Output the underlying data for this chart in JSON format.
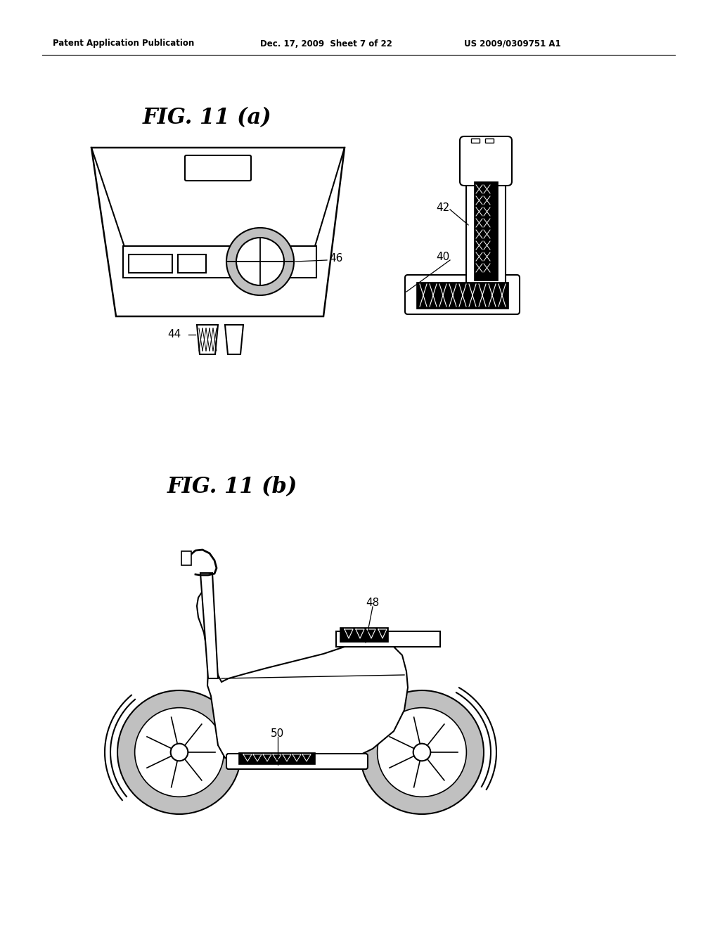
{
  "background_color": "#ffffff",
  "header_left": "Patent Application Publication",
  "header_mid": "Dec. 17, 2009  Sheet 7 of 22",
  "header_right": "US 2009/0309751 A1",
  "fig_title_a": "FIG. 11 (a)",
  "fig_title_b": "FIG. 11 (b)",
  "label_44": "44",
  "label_46": "46",
  "label_40": "40",
  "label_42": "42",
  "label_48": "48",
  "label_50": "50",
  "line_color": "#000000",
  "fill_gray": "#c0c0c0",
  "fig_width": 10.24,
  "fig_height": 13.2
}
